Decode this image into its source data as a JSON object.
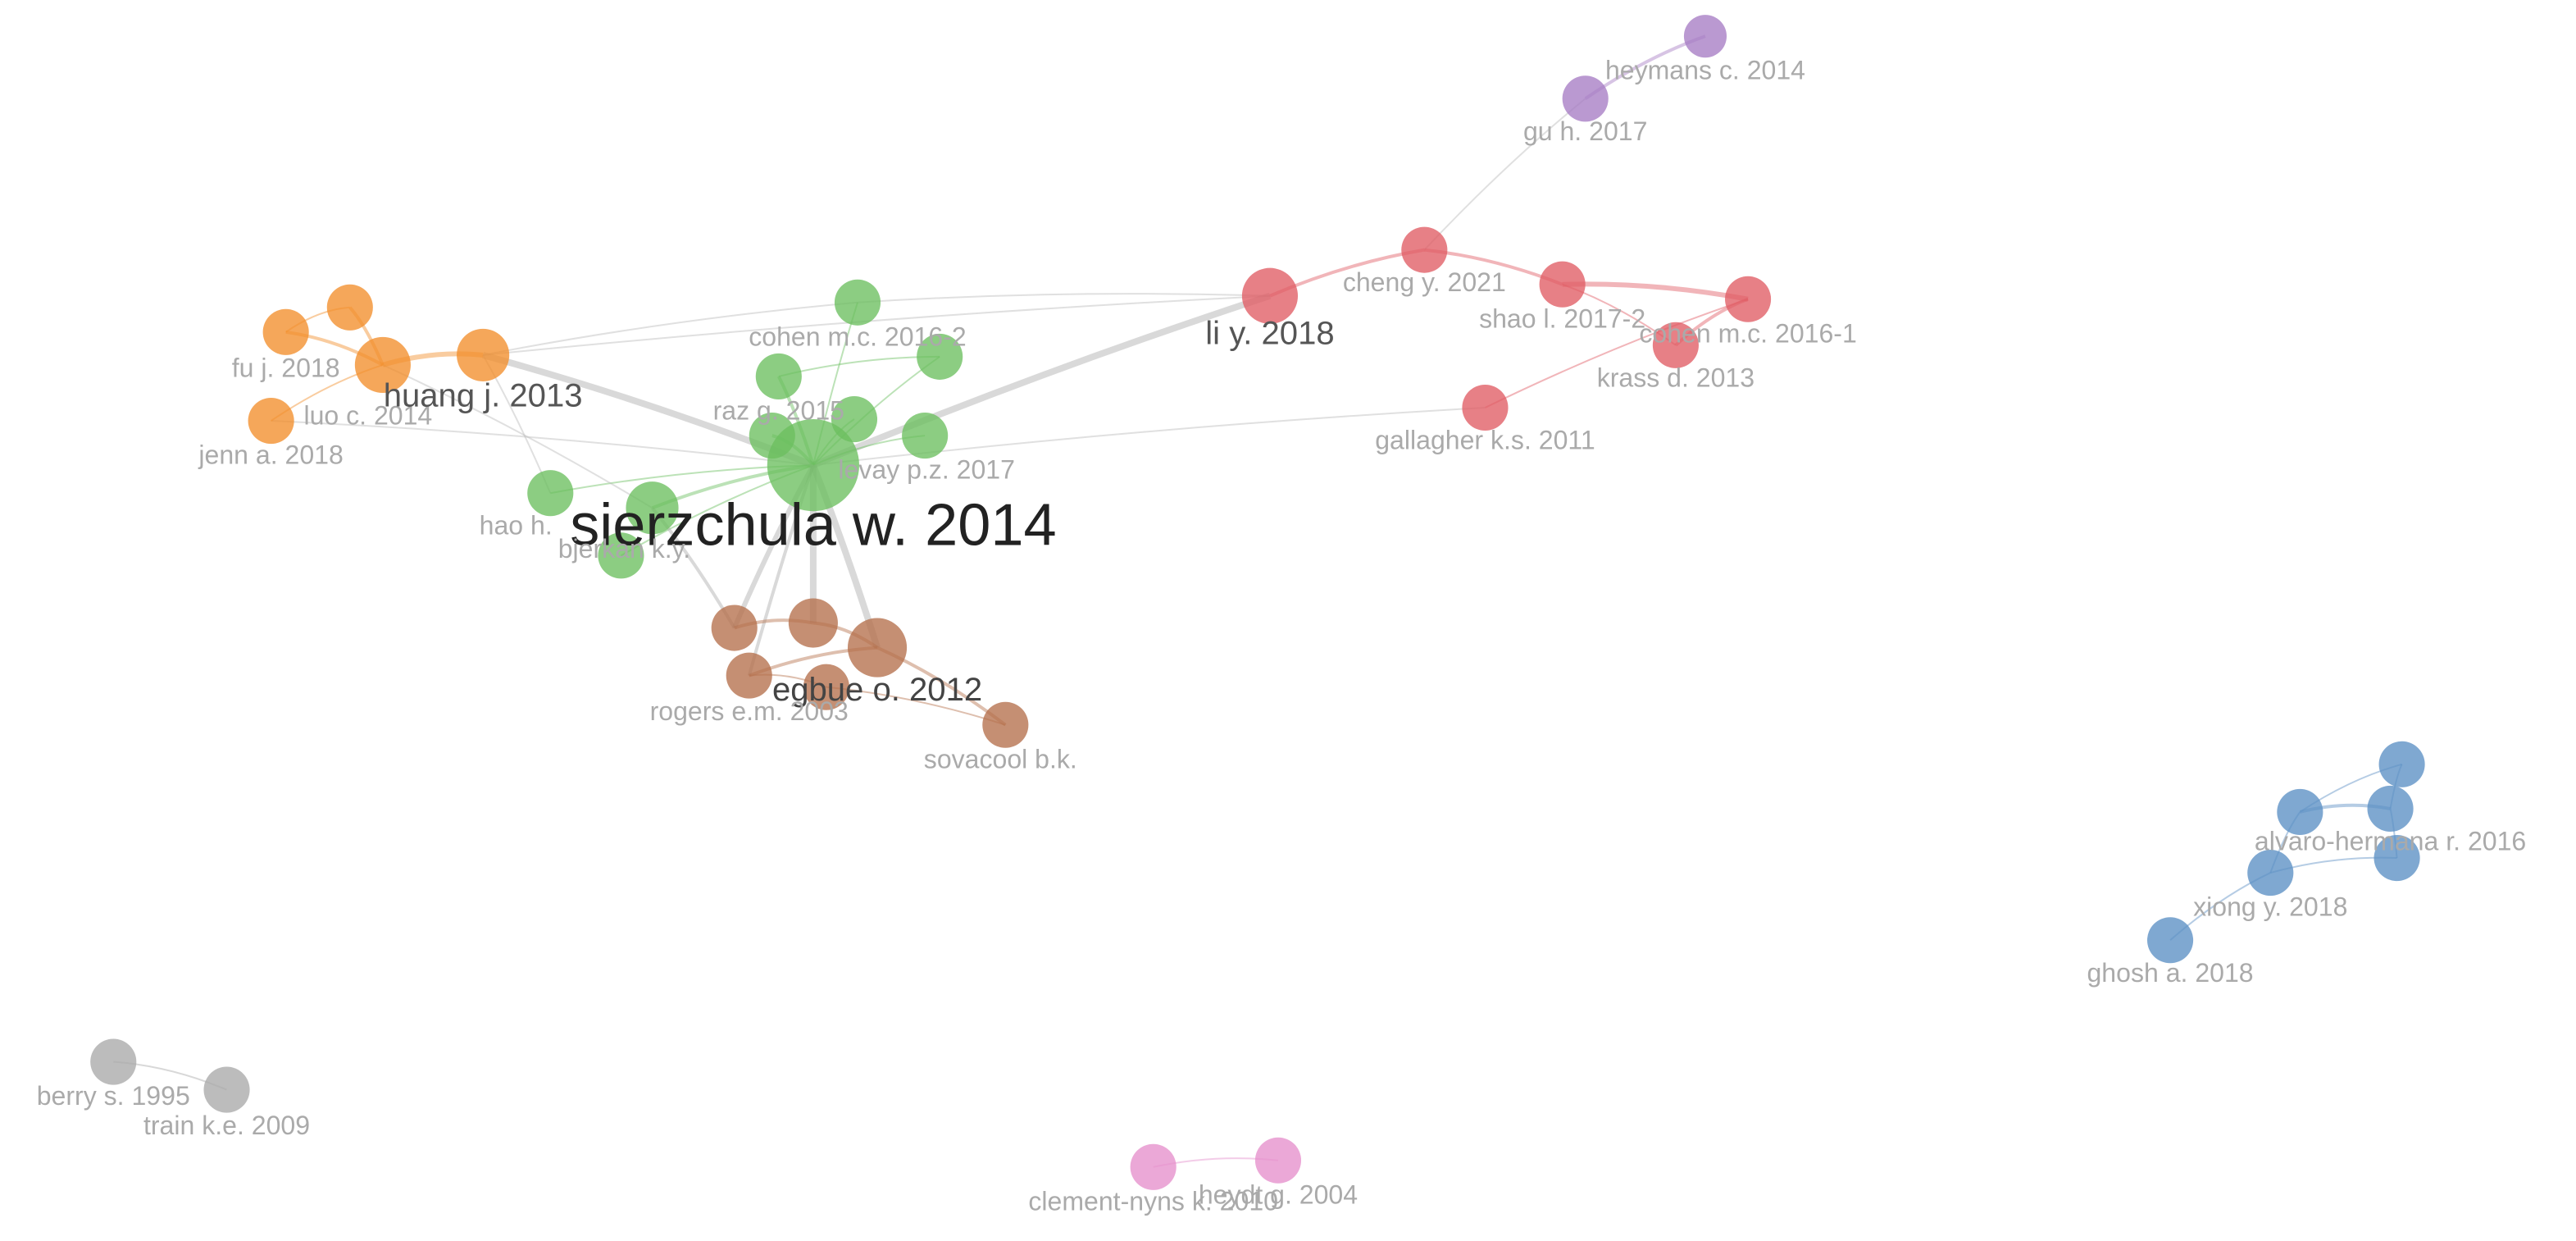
{
  "nodes": [
    {
      "label": "heymans c. 2014"
    },
    {
      "label": "gu h. 2017"
    },
    {
      "label": "li y. 2018"
    },
    {
      "label": "cheng y. 2021"
    },
    {
      "label": "shao l. 2017-2"
    },
    {
      "label": "cohen m.c. 2016-1"
    },
    {
      "label": "krass d. 2013"
    },
    {
      "label": "gallagher k.s. 2011"
    },
    {
      "label": "cohen m.c. 2016-2"
    },
    {
      "label": "raz g. 2015"
    },
    {
      "label": "levay p.z. 2017"
    },
    {
      "label": "sierzchula w. 2014"
    },
    {
      "label": "hao h."
    },
    {
      "label": "bjerkan k.y."
    },
    {
      "label": "fu j. 2018"
    },
    {
      "label": "luo c. 2014"
    },
    {
      "label": "huang j. 2013"
    },
    {
      "label": "jenn a. 2018"
    },
    {
      "label": "egbue o. 2012"
    },
    {
      "label": "rogers e.m. 2003"
    },
    {
      "label": "sovacool b.k."
    },
    {
      "label": "alvaro-hermana r. 2016"
    },
    {
      "label": "xiong y. 2018"
    },
    {
      "label": "ghosh a. 2018"
    },
    {
      "label": "berry s. 1995"
    },
    {
      "label": "train k.e. 2009"
    },
    {
      "label": "clement-nyns k. 2010"
    },
    {
      "label": "heydt g. 2004"
    }
  ]
}
